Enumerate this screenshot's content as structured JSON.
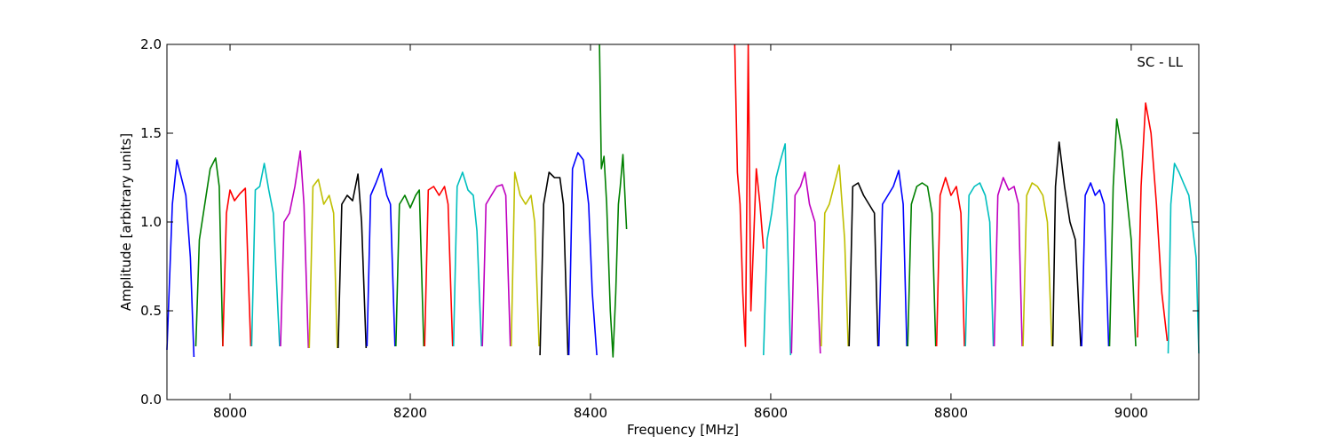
{
  "chart_data": {
    "type": "line",
    "xlabel": "Frequency [MHz]",
    "ylabel": "Amplitude [arbitrary units]",
    "xlim": [
      7930,
      9075
    ],
    "ylim": [
      0.0,
      2.0
    ],
    "xticks": [
      8000,
      8200,
      8400,
      8600,
      8800,
      9000
    ],
    "yticks": [
      0.0,
      0.5,
      1.0,
      1.5,
      2.0
    ],
    "ytick_labels": [
      "0.0",
      "0.5",
      "1.0",
      "1.5",
      "2.0"
    ],
    "annotation": "SC - LL",
    "grid": false,
    "legend": "none",
    "series": [
      {
        "color": "#0000ff",
        "x": [
          7930,
          7936,
          7941,
          7946,
          7951,
          7956,
          7960
        ],
        "y": [
          0.28,
          1.1,
          1.35,
          1.25,
          1.15,
          0.8,
          0.24
        ]
      },
      {
        "color": "#008000",
        "x": [
          7962,
          7966,
          7972,
          7978,
          7984,
          7988,
          7992
        ],
        "y": [
          0.3,
          0.9,
          1.1,
          1.3,
          1.36,
          1.2,
          0.3
        ]
      },
      {
        "color": "#ff0000",
        "x": [
          7992,
          7996,
          8000,
          8005,
          8011,
          8017,
          8023
        ],
        "y": [
          0.3,
          1.05,
          1.18,
          1.12,
          1.16,
          1.19,
          0.3
        ]
      },
      {
        "color": "#00bfbf",
        "x": [
          8024,
          8028,
          8033,
          8038,
          8043,
          8048,
          8055
        ],
        "y": [
          0.3,
          1.18,
          1.2,
          1.33,
          1.18,
          1.05,
          0.3
        ]
      },
      {
        "color": "#bf00bf",
        "x": [
          8056,
          8060,
          8066,
          8072,
          8078,
          8082,
          8087
        ],
        "y": [
          0.3,
          1.0,
          1.05,
          1.2,
          1.4,
          1.1,
          0.29
        ]
      },
      {
        "color": "#bfbf00",
        "x": [
          8088,
          8092,
          8098,
          8104,
          8110,
          8115,
          8119
        ],
        "y": [
          0.29,
          1.2,
          1.24,
          1.1,
          1.15,
          1.05,
          0.29
        ]
      },
      {
        "color": "#000000",
        "x": [
          8120,
          8124,
          8130,
          8136,
          8142,
          8146,
          8151
        ],
        "y": [
          0.29,
          1.1,
          1.15,
          1.12,
          1.27,
          1.0,
          0.29
        ]
      },
      {
        "color": "#0000ff",
        "x": [
          8152,
          8156,
          8162,
          8168,
          8174,
          8178,
          8183
        ],
        "y": [
          0.3,
          1.15,
          1.22,
          1.3,
          1.15,
          1.1,
          0.3
        ]
      },
      {
        "color": "#008000",
        "x": [
          8184,
          8188,
          8194,
          8200,
          8206,
          8210,
          8215
        ],
        "y": [
          0.3,
          1.1,
          1.15,
          1.08,
          1.15,
          1.18,
          0.3
        ]
      },
      {
        "color": "#ff0000",
        "x": [
          8216,
          8220,
          8226,
          8232,
          8238,
          8242,
          8247
        ],
        "y": [
          0.3,
          1.18,
          1.2,
          1.15,
          1.2,
          1.1,
          0.3
        ]
      },
      {
        "color": "#00bfbf",
        "x": [
          8248,
          8252,
          8258,
          8264,
          8270,
          8274,
          8279
        ],
        "y": [
          0.3,
          1.2,
          1.28,
          1.18,
          1.15,
          0.95,
          0.3
        ]
      },
      {
        "color": "#bf00bf",
        "x": [
          8280,
          8284,
          8290,
          8296,
          8302,
          8306,
          8311
        ],
        "y": [
          0.3,
          1.1,
          1.15,
          1.2,
          1.21,
          1.15,
          0.3
        ]
      },
      {
        "color": "#bfbf00",
        "x": [
          8312,
          8316,
          8322,
          8328,
          8334,
          8338,
          8343
        ],
        "y": [
          0.3,
          1.28,
          1.15,
          1.1,
          1.15,
          1.0,
          0.3
        ]
      },
      {
        "color": "#000000",
        "x": [
          8344,
          8348,
          8354,
          8360,
          8366,
          8370,
          8375
        ],
        "y": [
          0.25,
          1.1,
          1.28,
          1.25,
          1.25,
          1.1,
          0.25
        ]
      },
      {
        "color": "#0000ff",
        "x": [
          8376,
          8380,
          8386,
          8392,
          8398,
          8402,
          8407
        ],
        "y": [
          0.25,
          1.3,
          1.39,
          1.35,
          1.1,
          0.6,
          0.25
        ]
      },
      {
        "color": "#008000",
        "x": [
          8410,
          8412,
          8415,
          8418,
          8422,
          8425,
          8428,
          8431,
          8433,
          8436,
          8440
        ],
        "y": [
          2.0,
          1.3,
          1.37,
          1.1,
          0.5,
          0.24,
          0.6,
          1.1,
          1.2,
          1.38,
          0.96
        ]
      },
      {
        "color": "#ff0000",
        "x": [
          8560,
          8563,
          8566,
          8569,
          8572,
          8575,
          8578,
          8581,
          8584,
          8588,
          8592
        ],
        "y": [
          2.0,
          1.28,
          1.1,
          0.6,
          0.3,
          2.0,
          0.5,
          0.9,
          1.3,
          1.1,
          0.85
        ]
      },
      {
        "color": "#00bfbf",
        "x": [
          8592,
          8596,
          8601,
          8606,
          8611,
          8616,
          8622
        ],
        "y": [
          0.25,
          0.9,
          1.05,
          1.25,
          1.35,
          1.44,
          0.25
        ]
      },
      {
        "color": "#bf00bf",
        "x": [
          8623,
          8627,
          8633,
          8638,
          8643,
          8649,
          8655
        ],
        "y": [
          0.26,
          1.15,
          1.2,
          1.28,
          1.1,
          1.0,
          0.26
        ]
      },
      {
        "color": "#bfbf00",
        "x": [
          8656,
          8660,
          8665,
          8670,
          8676,
          8682,
          8686
        ],
        "y": [
          0.3,
          1.05,
          1.1,
          1.2,
          1.32,
          0.9,
          0.3
        ]
      },
      {
        "color": "#000000",
        "x": [
          8687,
          8691,
          8697,
          8703,
          8709,
          8715,
          8719
        ],
        "y": [
          0.3,
          1.2,
          1.22,
          1.15,
          1.1,
          1.05,
          0.3
        ]
      },
      {
        "color": "#0000ff",
        "x": [
          8720,
          8724,
          8730,
          8736,
          8742,
          8747,
          8751
        ],
        "y": [
          0.3,
          1.1,
          1.15,
          1.2,
          1.29,
          1.1,
          0.3
        ]
      },
      {
        "color": "#008000",
        "x": [
          8752,
          8756,
          8762,
          8768,
          8774,
          8779,
          8783
        ],
        "y": [
          0.3,
          1.1,
          1.2,
          1.22,
          1.2,
          1.05,
          0.3
        ]
      },
      {
        "color": "#ff0000",
        "x": [
          8784,
          8788,
          8794,
          8800,
          8806,
          8811,
          8815
        ],
        "y": [
          0.3,
          1.15,
          1.25,
          1.15,
          1.2,
          1.05,
          0.3
        ]
      },
      {
        "color": "#00bfbf",
        "x": [
          8816,
          8820,
          8826,
          8832,
          8838,
          8843,
          8847
        ],
        "y": [
          0.3,
          1.15,
          1.2,
          1.22,
          1.15,
          1.0,
          0.3
        ]
      },
      {
        "color": "#bf00bf",
        "x": [
          8848,
          8852,
          8858,
          8864,
          8870,
          8875,
          8879
        ],
        "y": [
          0.3,
          1.15,
          1.25,
          1.18,
          1.2,
          1.1,
          0.3
        ]
      },
      {
        "color": "#bfbf00",
        "x": [
          8880,
          8884,
          8890,
          8896,
          8902,
          8907,
          8912
        ],
        "y": [
          0.3,
          1.15,
          1.22,
          1.2,
          1.15,
          1.0,
          0.3
        ]
      },
      {
        "color": "#000000",
        "x": [
          8913,
          8916,
          8920,
          8926,
          8932,
          8938,
          8944
        ],
        "y": [
          0.3,
          1.2,
          1.45,
          1.2,
          1.0,
          0.9,
          0.3
        ]
      },
      {
        "color": "#0000ff",
        "x": [
          8945,
          8949,
          8955,
          8960,
          8965,
          8970,
          8975
        ],
        "y": [
          0.3,
          1.15,
          1.22,
          1.15,
          1.18,
          1.1,
          0.3
        ]
      },
      {
        "color": "#008000",
        "x": [
          8976,
          8980,
          8984,
          8990,
          8996,
          9000,
          9005
        ],
        "y": [
          0.3,
          1.2,
          1.58,
          1.4,
          1.1,
          0.9,
          0.3
        ]
      },
      {
        "color": "#ff0000",
        "x": [
          9007,
          9011,
          9016,
          9022,
          9028,
          9034,
          9040
        ],
        "y": [
          0.35,
          1.2,
          1.67,
          1.5,
          1.1,
          0.6,
          0.33
        ]
      },
      {
        "color": "#00bfbf",
        "x": [
          9041,
          9044,
          9048,
          9053,
          9058,
          9064,
          9072,
          9075
        ],
        "y": [
          0.26,
          1.1,
          1.33,
          1.28,
          1.22,
          1.15,
          0.8,
          0.26
        ]
      }
    ]
  }
}
